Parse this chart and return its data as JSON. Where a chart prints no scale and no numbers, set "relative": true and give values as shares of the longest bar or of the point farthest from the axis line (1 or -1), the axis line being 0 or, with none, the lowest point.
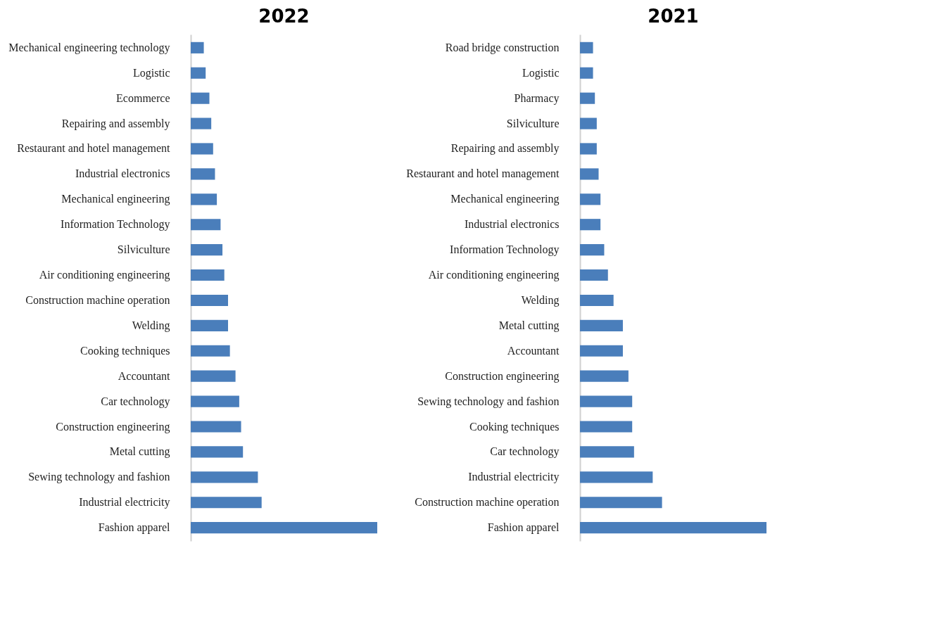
{
  "chart_data": [
    {
      "type": "bar",
      "title": "2022",
      "orientation": "horizontal",
      "relative": true,
      "color": "#4a7ebb",
      "categories": [
        "Mechanical engineering technology",
        "Logistic",
        "Ecommerce",
        "Repairing and assembly",
        "Restaurant and hotel management",
        "Industrial electronics",
        "Mechanical engineering",
        "Information Technology",
        "Silviculture",
        "Air conditioning engineering",
        "Construction machine operation",
        "Welding",
        "Cooking techniques",
        "Accountant",
        "Car technology",
        "Construction engineering",
        "Metal cutting",
        "Sewing technology and fashion",
        "Industrial electricity",
        "Fashion apparel"
      ],
      "values": [
        0.07,
        0.08,
        0.1,
        0.11,
        0.12,
        0.13,
        0.14,
        0.16,
        0.17,
        0.18,
        0.2,
        0.2,
        0.21,
        0.24,
        0.26,
        0.27,
        0.28,
        0.36,
        0.38,
        1
      ]
    },
    {
      "type": "bar",
      "title": "2021",
      "orientation": "horizontal",
      "relative": true,
      "color": "#4a7ebb",
      "categories": [
        "Road bridge construction",
        "Logistic",
        "Pharmacy",
        "Silviculture",
        "Repairing and assembly",
        "Restaurant and hotel management",
        "Mechanical engineering",
        "Industrial electronics",
        "Information Technology",
        "Air conditioning engineering",
        "Welding",
        "Metal cutting",
        "Accountant",
        "Construction engineering",
        "Sewing technology and fashion",
        "Cooking techniques",
        "Car technology",
        "Industrial electricity",
        "Construction machine operation",
        "Fashion apparel"
      ],
      "values": [
        0.07,
        0.07,
        0.08,
        0.09,
        0.09,
        0.1,
        0.11,
        0.11,
        0.13,
        0.15,
        0.18,
        0.23,
        0.23,
        0.26,
        0.28,
        0.28,
        0.29,
        0.39,
        0.44,
        1
      ]
    }
  ]
}
